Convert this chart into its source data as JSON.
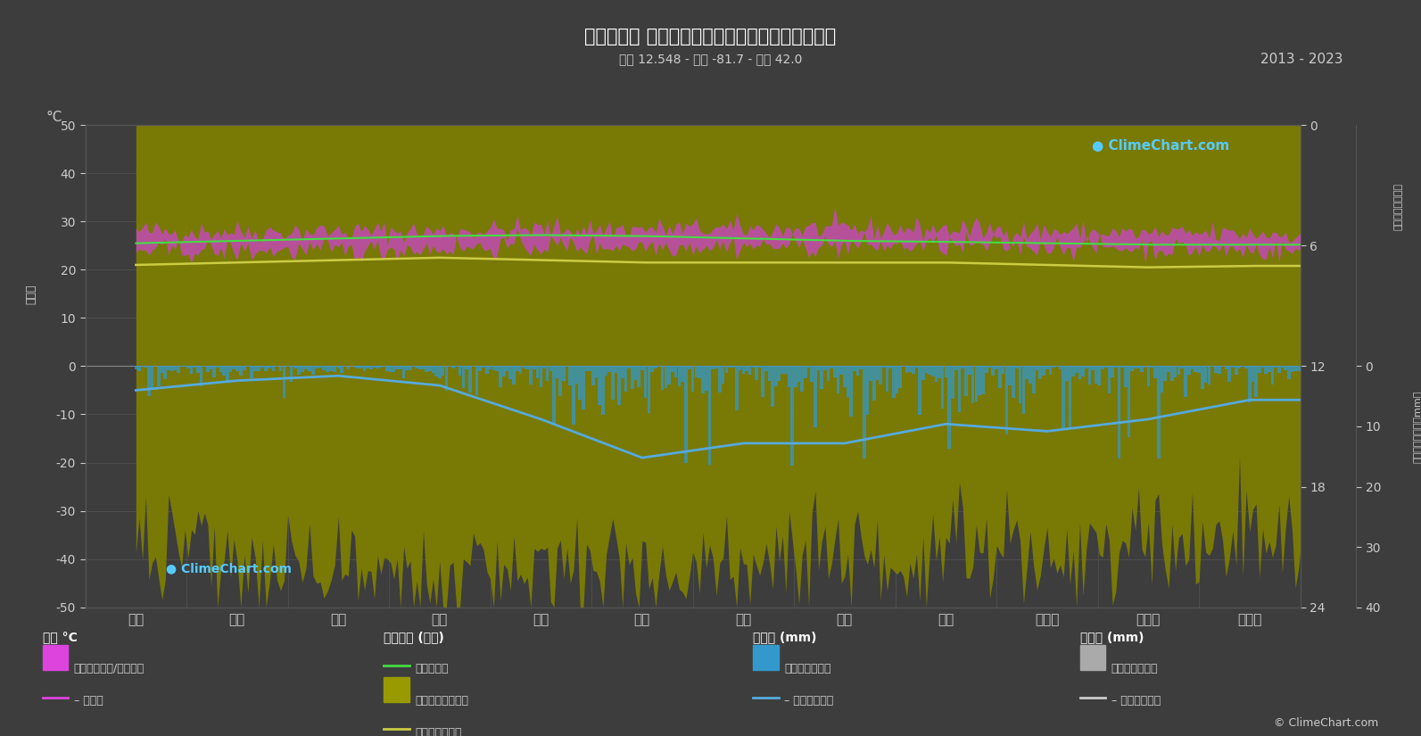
{
  "title": "の気候変動 サンアンドレス島とプロビデンシア島",
  "subtitle": "緯度 12.548 - 経度 -81.7 - 標高 42.0",
  "year_range": "2013 - 2023",
  "background_color": "#3d3d3d",
  "grid_color": "#555555",
  "text_color": "#cccccc",
  "months": [
    "１月",
    "２月",
    "３月",
    "４月",
    "５月",
    "６月",
    "７月",
    "８月",
    "９月",
    "１０月",
    "１１月",
    "１２月"
  ],
  "temp_max_daily": [
    28.0,
    28.0,
    28.0,
    28.0,
    28.5,
    28.5,
    28.5,
    28.5,
    28.5,
    28.0,
    27.5,
    27.5
  ],
  "temp_min_daily": [
    24.0,
    24.0,
    24.0,
    24.5,
    25.0,
    25.0,
    25.0,
    25.0,
    25.0,
    25.0,
    24.5,
    24.0
  ],
  "daylight_line": [
    25.5,
    26.0,
    26.5,
    27.0,
    27.2,
    27.0,
    26.5,
    26.0,
    25.8,
    25.5,
    25.2,
    25.2
  ],
  "sunshine_daily_mean": [
    21.0,
    21.5,
    22.0,
    22.5,
    22.0,
    21.5,
    21.5,
    21.5,
    21.5,
    21.0,
    20.5,
    20.8
  ],
  "precip_curve": [
    -5.0,
    -3.0,
    -2.0,
    -4.0,
    -11.0,
    -19.0,
    -16.0,
    -16.0,
    -12.0,
    -13.5,
    -11.0,
    -7.0
  ],
  "ylabel_left": "°C",
  "ylabel_left_rotated": "気温度",
  "ylabel_right_top": "日照時間（時間）",
  "ylabel_right_bottom": "降雨量・降雪量（mm）",
  "logo_text": "ClimeChart.com",
  "copyright": "© ClimeChart.com",
  "legend": {
    "col1_title": "気温 °C",
    "col1_item1_color": "#dd44dd",
    "col1_item1_label": "日ごとの最小/最大範囲",
    "col1_item2_color": "#dd44dd",
    "col1_item2_label": "– 月平均",
    "col2_title": "日照時間 (時間)",
    "col2_item1_color": "#44dd44",
    "col2_item1_label": "日中の時間",
    "col2_item2_color": "#999900",
    "col2_item2_label": "日ごとの日照時間",
    "col2_item3_color": "#cccc44",
    "col2_item3_label": "月平均日照時間",
    "col3_title": "降雨量 (mm)",
    "col3_item1_color": "#3399cc",
    "col3_item1_label": "日ごとの降雨量",
    "col3_item2_color": "#55aadd",
    "col3_item2_label": "– 月平均降雨量",
    "col4_title": "降雪量 (mm)",
    "col4_item1_color": "#aaaaaa",
    "col4_item1_label": "日ごとの降雪量",
    "col4_item2_color": "#cccccc",
    "col4_item2_label": "– 月平均降雪量"
  }
}
